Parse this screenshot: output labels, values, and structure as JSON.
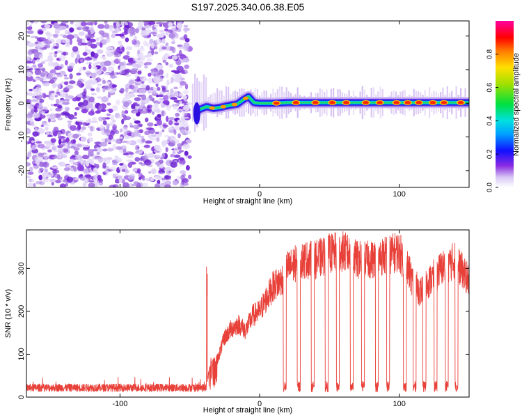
{
  "title": "S197.2025.340.06.38.E05",
  "chart_data": [
    {
      "type": "heatmap",
      "xlabel": "Height of straight line (km)",
      "ylabel": "Frequency (Hz)",
      "xlim": [
        -167,
        150
      ],
      "ylim": [
        -25,
        24.5
      ],
      "x_ticks": [
        -100,
        0,
        100
      ],
      "y_ticks": [
        -20,
        -10,
        0,
        10,
        20
      ],
      "colorbar": {
        "label": "Normalized spectral amplitude",
        "ticks": [
          0.0,
          0.2,
          0.4,
          0.6,
          0.8
        ],
        "range": [
          0,
          1
        ]
      },
      "noise_region_x": [
        -167,
        -50
      ],
      "ridge_points": [
        {
          "x": -44,
          "y": -2.0
        },
        {
          "x": -38,
          "y": -1.0
        },
        {
          "x": -33,
          "y": -1.5
        },
        {
          "x": -28,
          "y": -1.2
        },
        {
          "x": -24,
          "y": -0.8
        },
        {
          "x": -20,
          "y": -0.5
        },
        {
          "x": -16,
          "y": -0.2
        },
        {
          "x": -12,
          "y": 1.0
        },
        {
          "x": -8,
          "y": 2.0
        },
        {
          "x": -4,
          "y": 0.2
        },
        {
          "x": 0,
          "y": 0.0
        },
        {
          "x": 10,
          "y": 0.0
        },
        {
          "x": 20,
          "y": 0.2
        },
        {
          "x": 40,
          "y": 0.2
        },
        {
          "x": 60,
          "y": 0.2
        },
        {
          "x": 80,
          "y": 0.2
        },
        {
          "x": 100,
          "y": 0.2
        },
        {
          "x": 120,
          "y": 0.2
        },
        {
          "x": 150,
          "y": 0.2
        }
      ],
      "ridge_hotspots_x": [
        12,
        26,
        40,
        52,
        62,
        76,
        86,
        98,
        106,
        114,
        124,
        132,
        144
      ],
      "grid": false
    },
    {
      "type": "line",
      "xlabel": "Height of straight line (km)",
      "ylabel": "SNR (10 * v/v)",
      "xlim": [
        -167,
        150
      ],
      "ylim": [
        0,
        390
      ],
      "x_ticks": [
        -100,
        0,
        100
      ],
      "y_ticks": [
        0,
        100,
        200,
        300
      ],
      "color": "#e8413a",
      "noise_floor": 22,
      "onset_x": -38,
      "onset_peak": 320,
      "level_profile": [
        [
          -38,
          30
        ],
        [
          -35,
          80
        ],
        [
          -30,
          90
        ],
        [
          -25,
          140
        ],
        [
          -20,
          160
        ],
        [
          -15,
          170
        ],
        [
          -10,
          155
        ],
        [
          -5,
          190
        ],
        [
          0,
          200
        ],
        [
          5,
          230
        ],
        [
          10,
          260
        ],
        [
          15,
          270
        ],
        [
          20,
          300
        ],
        [
          30,
          320
        ],
        [
          40,
          320
        ],
        [
          50,
          335
        ],
        [
          60,
          340
        ],
        [
          70,
          320
        ],
        [
          80,
          320
        ],
        [
          90,
          330
        ],
        [
          100,
          340
        ],
        [
          110,
          270
        ],
        [
          115,
          245
        ],
        [
          120,
          265
        ],
        [
          130,
          300
        ],
        [
          140,
          320
        ],
        [
          150,
          270
        ]
      ],
      "dropout_x": [
        18,
        28,
        38,
        48,
        56,
        66,
        74,
        84,
        92,
        104,
        111,
        118,
        126,
        134,
        141
      ],
      "grid": false
    }
  ]
}
